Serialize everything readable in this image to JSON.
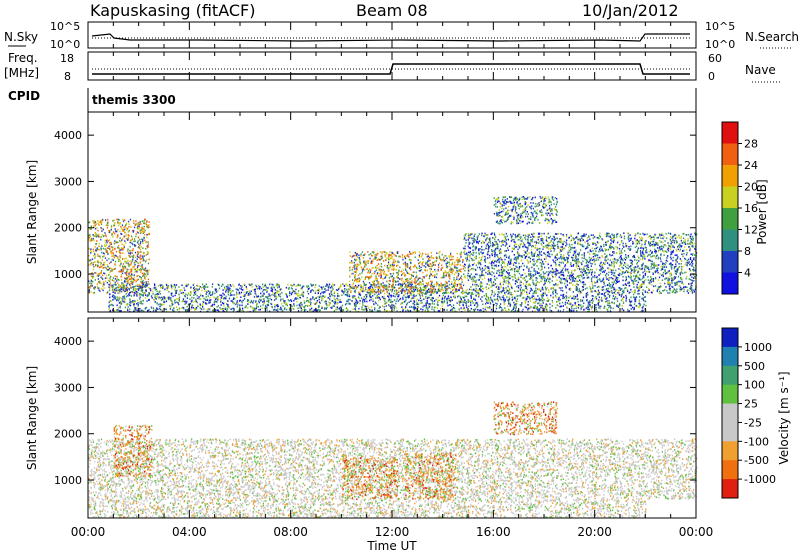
{
  "header": {
    "station": "Kapuskasing (fitACF)",
    "beam": "Beam 08",
    "date": "10/Jan/2012"
  },
  "top_panels": {
    "nsky_label": "N.Sky",
    "nsky_ticks": [
      "10^5",
      "10^0"
    ],
    "nsearch_label": "N.Search",
    "nsearch_ticks": [
      "10^5",
      "10^0"
    ],
    "freq_label": "Freq.",
    "freq_unit": "[MHz]",
    "freq_ticks": [
      "18",
      "8"
    ],
    "nave_label": "Nave",
    "nave_ticks": [
      "60",
      "0"
    ],
    "cpid_label": "CPID",
    "cpid_value": "themis 3300"
  },
  "chart_data": [
    {
      "type": "heatmap",
      "name": "power",
      "ylabel": "Slant Range [km]",
      "yticks": [
        "4000",
        "3000",
        "2000",
        "1000"
      ],
      "ylim": [
        180,
        4500
      ],
      "colorbar_label": "Power [dB]",
      "colorbar_ticks": [
        "28",
        "24",
        "20",
        "16",
        "12",
        "8",
        "4"
      ],
      "colorbar_colors": [
        "#e01010",
        "#f06010",
        "#f0a000",
        "#c8d020",
        "#40a040",
        "#309080",
        "#2040c0",
        "#1010e0"
      ],
      "regions": [
        {
          "t0": 0.0,
          "t1": 2.4,
          "r0": 600,
          "r1": 2200,
          "level": "high"
        },
        {
          "t0": 0.8,
          "t1": 22.0,
          "r0": 200,
          "r1": 800,
          "level": "low"
        },
        {
          "t0": 10.3,
          "t1": 14.8,
          "r0": 600,
          "r1": 1500,
          "level": "high"
        },
        {
          "t0": 14.8,
          "t1": 22.0,
          "r0": 800,
          "r1": 1900,
          "level": "low"
        },
        {
          "t0": 16.0,
          "t1": 18.5,
          "r0": 2100,
          "r1": 2700,
          "level": "mid"
        },
        {
          "t0": 22.0,
          "t1": 24.0,
          "r0": 600,
          "r1": 1900,
          "level": "mid"
        }
      ]
    },
    {
      "type": "heatmap",
      "name": "velocity",
      "ylabel": "Slant Range [km]",
      "yticks": [
        "4000",
        "3000",
        "2000",
        "1000"
      ],
      "ylim": [
        180,
        4500
      ],
      "xlabel": "Time UT",
      "xticks": [
        "00:00",
        "04:00",
        "08:00",
        "12:00",
        "16:00",
        "20:00",
        "00:00"
      ],
      "xlim": [
        0,
        24
      ],
      "colorbar_label": "Velocity [m s⁻¹]",
      "colorbar_ticks": [
        "1000",
        "500",
        "100",
        "25",
        "-25",
        "-100",
        "-500",
        "-1000"
      ],
      "colorbar_colors": [
        "#1020c0",
        "#2080b0",
        "#40a070",
        "#60c040",
        "#c8c8c8",
        "#c8c8c8",
        "#f0a030",
        "#f07010",
        "#e02010"
      ],
      "regions": [
        {
          "t0": 0.0,
          "t1": 22.0,
          "r0": 200,
          "r1": 1900,
          "level": "gray"
        },
        {
          "t0": 1.0,
          "t1": 2.5,
          "r0": 1100,
          "r1": 2200,
          "level": "orange"
        },
        {
          "t0": 10.0,
          "t1": 12.2,
          "r0": 600,
          "r1": 1500,
          "level": "orange"
        },
        {
          "t0": 12.5,
          "t1": 14.5,
          "r0": 600,
          "r1": 1600,
          "level": "orange"
        },
        {
          "t0": 16.0,
          "t1": 18.5,
          "r0": 2000,
          "r1": 2700,
          "level": "orange"
        },
        {
          "t0": 22.0,
          "t1": 24.0,
          "r0": 600,
          "r1": 1900,
          "level": "gray"
        }
      ]
    }
  ]
}
